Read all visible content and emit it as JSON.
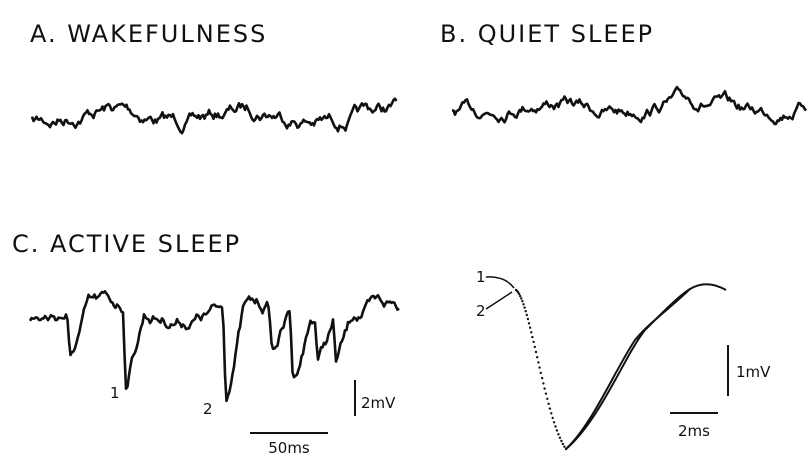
{
  "panels": [
    {
      "title": "A. WAKEFULNESS"
    },
    {
      "title": "B. QUIET SLEEP"
    },
    {
      "title": "C. ACTIVE SLEEP",
      "spike_labels": [
        "1",
        "2"
      ],
      "scale_bars": {
        "vertical": "2mV",
        "horizontal": "50ms"
      }
    },
    {
      "curve_labels": [
        "1",
        "2"
      ],
      "scale_bars": {
        "vertical": "1mV",
        "horizontal": "2ms"
      }
    }
  ]
}
